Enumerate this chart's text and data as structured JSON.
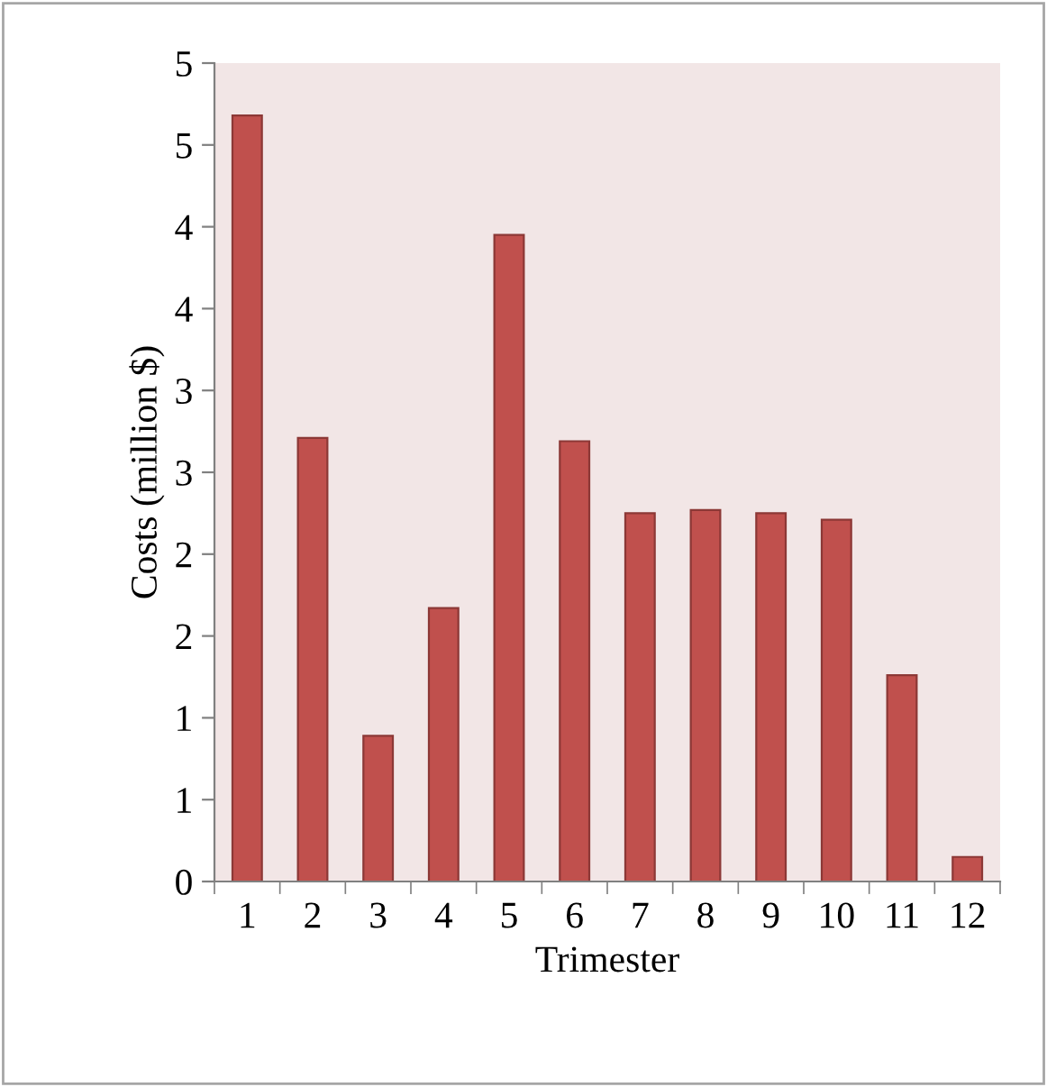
{
  "chart_data": {
    "type": "bar",
    "xlabel": "Trimester",
    "ylabel": "Costs (million $)",
    "categories": [
      "1",
      "2",
      "3",
      "4",
      "5",
      "6",
      "7",
      "8",
      "9",
      "10",
      "11",
      "12"
    ],
    "values": [
      4.68,
      2.71,
      0.89,
      1.67,
      3.95,
      2.69,
      2.25,
      2.27,
      2.25,
      2.21,
      1.26,
      0.15
    ],
    "color": "#c0504d",
    "ylim": [
      0,
      5
    ],
    "yticks": [
      0,
      {
        "value": 0.5,
        "label": "1"
      },
      1,
      {
        "value": 1.5,
        "label": "2"
      },
      2,
      {
        "value": 2.5,
        "label": "3"
      },
      3,
      {
        "value": 3.5,
        "label": "4"
      },
      4,
      {
        "value": 4.5,
        "label": "5"
      },
      5
    ],
    "grid": false,
    "legend": false
  }
}
